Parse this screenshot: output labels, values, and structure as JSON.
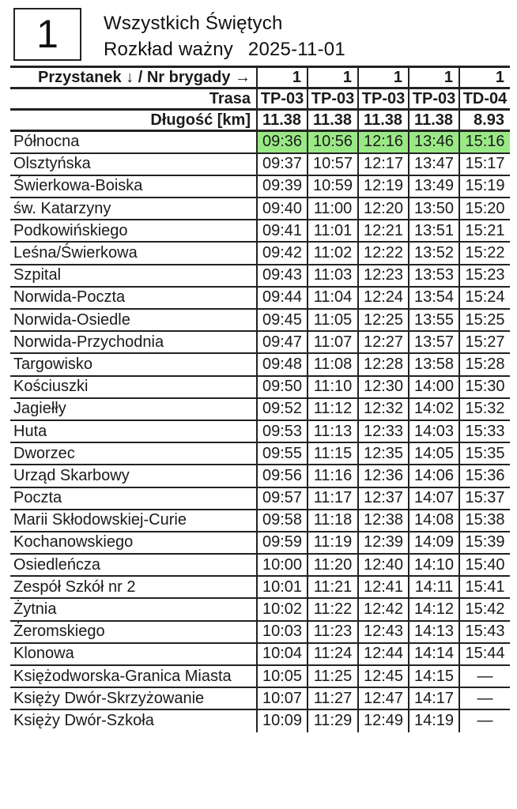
{
  "header": {
    "route_number": "1",
    "title": "Wszystkich Świętych",
    "schedule_label": "Rozkład ważny",
    "valid_date": "2025-11-01"
  },
  "table": {
    "corner_label": "Przystanek ↓ / Nr brygady →",
    "brigade_numbers": [
      "1",
      "1",
      "1",
      "1",
      "1"
    ],
    "trasa_label": "Trasa",
    "trasa_values": [
      "TP-03",
      "TP-03",
      "TP-03",
      "TP-03",
      "TD-04"
    ],
    "length_label": "Długość [km]",
    "length_values": [
      "11.38",
      "11.38",
      "11.38",
      "11.38",
      "8.93"
    ],
    "highlight_color": "#9ae885",
    "no_service_symbol": "—",
    "rows": [
      {
        "stop": "Północna",
        "times": [
          "09:36",
          "10:56",
          "12:16",
          "13:46",
          "15:16"
        ],
        "highlight": true
      },
      {
        "stop": "Olsztyńska",
        "times": [
          "09:37",
          "10:57",
          "12:17",
          "13:47",
          "15:17"
        ],
        "highlight": false
      },
      {
        "stop": "Świerkowa-Boiska",
        "times": [
          "09:39",
          "10:59",
          "12:19",
          "13:49",
          "15:19"
        ],
        "highlight": false
      },
      {
        "stop": "św. Katarzyny",
        "times": [
          "09:40",
          "11:00",
          "12:20",
          "13:50",
          "15:20"
        ],
        "highlight": false
      },
      {
        "stop": "Podkowińskiego",
        "times": [
          "09:41",
          "11:01",
          "12:21",
          "13:51",
          "15:21"
        ],
        "highlight": false
      },
      {
        "stop": "Leśna/Świerkowa",
        "times": [
          "09:42",
          "11:02",
          "12:22",
          "13:52",
          "15:22"
        ],
        "highlight": false
      },
      {
        "stop": "Szpital",
        "times": [
          "09:43",
          "11:03",
          "12:23",
          "13:53",
          "15:23"
        ],
        "highlight": false
      },
      {
        "stop": "Norwida-Poczta",
        "times": [
          "09:44",
          "11:04",
          "12:24",
          "13:54",
          "15:24"
        ],
        "highlight": false
      },
      {
        "stop": "Norwida-Osiedle",
        "times": [
          "09:45",
          "11:05",
          "12:25",
          "13:55",
          "15:25"
        ],
        "highlight": false
      },
      {
        "stop": "Norwida-Przychodnia",
        "times": [
          "09:47",
          "11:07",
          "12:27",
          "13:57",
          "15:27"
        ],
        "highlight": false
      },
      {
        "stop": "Targowisko",
        "times": [
          "09:48",
          "11:08",
          "12:28",
          "13:58",
          "15:28"
        ],
        "highlight": false
      },
      {
        "stop": "Kościuszki",
        "times": [
          "09:50",
          "11:10",
          "12:30",
          "14:00",
          "15:30"
        ],
        "highlight": false
      },
      {
        "stop": "Jagiełły",
        "times": [
          "09:52",
          "11:12",
          "12:32",
          "14:02",
          "15:32"
        ],
        "highlight": false
      },
      {
        "stop": "Huta",
        "times": [
          "09:53",
          "11:13",
          "12:33",
          "14:03",
          "15:33"
        ],
        "highlight": false
      },
      {
        "stop": "Dworzec",
        "times": [
          "09:55",
          "11:15",
          "12:35",
          "14:05",
          "15:35"
        ],
        "highlight": false
      },
      {
        "stop": "Urząd Skarbowy",
        "times": [
          "09:56",
          "11:16",
          "12:36",
          "14:06",
          "15:36"
        ],
        "highlight": false
      },
      {
        "stop": "Poczta",
        "times": [
          "09:57",
          "11:17",
          "12:37",
          "14:07",
          "15:37"
        ],
        "highlight": false
      },
      {
        "stop": "Marii Skłodowskiej-Curie",
        "times": [
          "09:58",
          "11:18",
          "12:38",
          "14:08",
          "15:38"
        ],
        "highlight": false
      },
      {
        "stop": "Kochanowskiego",
        "times": [
          "09:59",
          "11:19",
          "12:39",
          "14:09",
          "15:39"
        ],
        "highlight": false
      },
      {
        "stop": "Osiedleńcza",
        "times": [
          "10:00",
          "11:20",
          "12:40",
          "14:10",
          "15:40"
        ],
        "highlight": false
      },
      {
        "stop": "Zespół Szkół nr 2",
        "times": [
          "10:01",
          "11:21",
          "12:41",
          "14:11",
          "15:41"
        ],
        "highlight": false
      },
      {
        "stop": "Żytnia",
        "times": [
          "10:02",
          "11:22",
          "12:42",
          "14:12",
          "15:42"
        ],
        "highlight": false
      },
      {
        "stop": "Żeromskiego",
        "times": [
          "10:03",
          "11:23",
          "12:43",
          "14:13",
          "15:43"
        ],
        "highlight": false
      },
      {
        "stop": "Klonowa",
        "times": [
          "10:04",
          "11:24",
          "12:44",
          "14:14",
          "15:44"
        ],
        "highlight": false
      },
      {
        "stop": "Księżodworska-Granica Miasta",
        "times": [
          "10:05",
          "11:25",
          "12:45",
          "14:15",
          "—"
        ],
        "highlight": false
      },
      {
        "stop": "Księży Dwór-Skrzyżowanie",
        "times": [
          "10:07",
          "11:27",
          "12:47",
          "14:17",
          "—"
        ],
        "highlight": false
      },
      {
        "stop": "Księży Dwór-Szkoła",
        "times": [
          "10:09",
          "11:29",
          "12:49",
          "14:19",
          "—"
        ],
        "highlight": false
      }
    ]
  }
}
